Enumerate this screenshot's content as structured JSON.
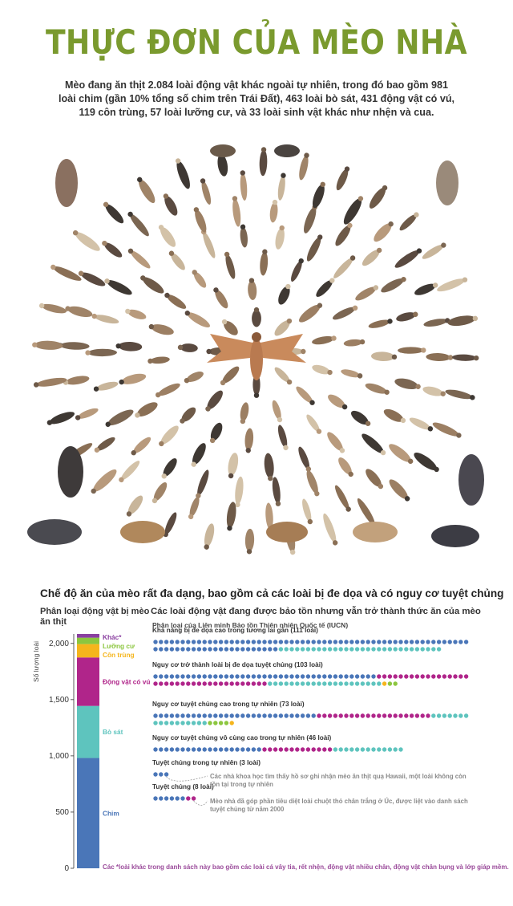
{
  "title": "THỰC ĐƠN CỦA MÈO NHÀ",
  "intro": "Mèo đang ăn thịt 2.084 loài động vật khác ngoài tự nhiên, trong đó bao gồm 981 loài chim (gần 10% tổng số chim trên Trái Đất), 463 loài bò sát, 431 động vật có vú, 119 côn trùng, 57 loài lưỡng cư, và 33 loài sinh vật khác như nhện và cua.",
  "section_title": "Chế độ ăn của mèo rất đa dạng, bao gồm cả các loài bị đe dọa và có nguy cơ tuyệt chủng",
  "left_title": "Phân loại động vật bị mèo ăn thịt",
  "right_title": "Các loài động vật đang được bảo tồn nhưng vẫn trở thành thức ăn của mèo",
  "iucn_title": "Phân loại của Liên minh Bảo tồn Thiên nhiên Quốc tế (IUCN)",
  "footnote": "Các *loài khác trong danh sách này bao gồm các loài cá vây tia, rết nhện, động vật nhiều chân, động vật chân bụng và lớp giáp mềm.",
  "colors": {
    "title": "#7a9a2e",
    "birds": "#4a76b8",
    "reptiles": "#5ec4be",
    "mammals": "#b0258a",
    "insects": "#f5b51c",
    "amphibians": "#8cc63f",
    "others": "#8a3fa0"
  },
  "chart_data": [
    {
      "type": "bar",
      "stacked": true,
      "ylabel": "Số lượng loài",
      "yticks": [
        0,
        500,
        1000,
        1500,
        2000
      ],
      "ylim": [
        0,
        2084
      ],
      "series": [
        {
          "name": "Chim",
          "value": 981,
          "color": "#4a76b8"
        },
        {
          "name": "Bò sát",
          "value": 463,
          "color": "#5ec4be"
        },
        {
          "name": "Động vật có vú",
          "value": 431,
          "color": "#b0258a"
        },
        {
          "name": "Côn trùng",
          "value": 119,
          "color": "#f5b51c"
        },
        {
          "name": "Lưỡng cư",
          "value": 57,
          "color": "#8cc63f"
        },
        {
          "name": "Khác*",
          "value": 33,
          "color": "#8a3fa0"
        }
      ]
    },
    {
      "type": "dot",
      "groups": [
        {
          "label": "Khả năng bị đe dọa cao trong tương lai gần (111 loài)",
          "total": 111,
          "counts": [
            {
              "cls": "birds",
              "n": 81
            },
            {
              "cls": "reptiles",
              "n": 30
            }
          ]
        },
        {
          "label": "Nguy cơ trở thành loài bị đe dọa tuyệt chủng (103 loài)",
          "total": 103,
          "counts": [
            {
              "cls": "birds",
              "n": 41
            },
            {
              "cls": "mammals",
              "n": 38
            },
            {
              "cls": "reptiles",
              "n": 21
            },
            {
              "cls": "insects",
              "n": 1
            },
            {
              "cls": "amphibians",
              "n": 2
            }
          ]
        },
        {
          "label": "Nguy cơ tuyệt chủng cao trong tự nhiên (73 loài)",
          "total": 73,
          "counts": [
            {
              "cls": "birds",
              "n": 30
            },
            {
              "cls": "mammals",
              "n": 21
            },
            {
              "cls": "reptiles",
              "n": 17
            },
            {
              "cls": "amphibians",
              "n": 4
            },
            {
              "cls": "insects",
              "n": 1
            }
          ]
        },
        {
          "label": "Nguy cơ tuyệt chủng vô cùng cao trong tự nhiên (46 loài)",
          "total": 46,
          "counts": [
            {
              "cls": "birds",
              "n": 20
            },
            {
              "cls": "mammals",
              "n": 13
            },
            {
              "cls": "reptiles",
              "n": 13
            }
          ]
        },
        {
          "label": "Tuyệt chủng trong tự nhiên (3 loài)",
          "total": 3,
          "counts": [
            {
              "cls": "birds",
              "n": 3
            }
          ]
        },
        {
          "label": "Tuyệt chủng (8 loài)",
          "total": 8,
          "counts": [
            {
              "cls": "birds",
              "n": 6
            },
            {
              "cls": "mammals",
              "n": 2
            }
          ]
        }
      ]
    }
  ],
  "annotations": [
    "Các nhà khoa học tìm thấy hồ sơ ghi nhận mèo ăn thịt quạ Hawaii, một loài không còn tồn tại trong tự nhiên",
    "Mèo nhà đã góp phần tiêu diệt loài chuột thỏ chân trắng ở Úc, được liệt vào danh sách tuyệt chủng từ năm 2000"
  ]
}
